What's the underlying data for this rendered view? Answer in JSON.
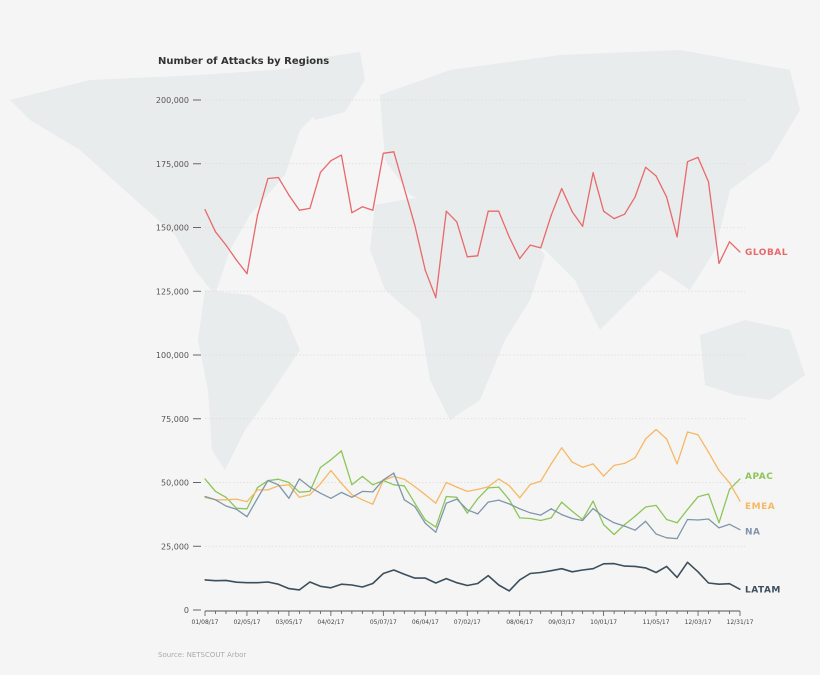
{
  "chart_data": {
    "type": "line",
    "title": "Number of Attacks by Regions",
    "source": "Source: NETSCOUT Arbor",
    "ylim": [
      0,
      200000
    ],
    "yticks": [
      "0",
      "25,000",
      "50,000",
      "75,000",
      "100,000",
      "125,000",
      "150,000",
      "175,000",
      "200,000"
    ],
    "ytick_values": [
      0,
      25000,
      50000,
      75000,
      100000,
      125000,
      150000,
      175000,
      200000
    ],
    "x_start": "01/08/17",
    "x_interval": "weekly",
    "x_count": 52,
    "xticks": [
      {
        "index": 0,
        "label": "01/08/17"
      },
      {
        "index": 4,
        "label": "02/05/17"
      },
      {
        "index": 8,
        "label": "03/05/17"
      },
      {
        "index": 12,
        "label": "04/02/17"
      },
      {
        "index": 17,
        "label": "05/07/17"
      },
      {
        "index": 21,
        "label": "06/04/17"
      },
      {
        "index": 25,
        "label": "07/02/17"
      },
      {
        "index": 30,
        "label": "08/06/17"
      },
      {
        "index": 34,
        "label": "09/03/17"
      },
      {
        "index": 38,
        "label": "10/01/17"
      },
      {
        "index": 43,
        "label": "11/05/17"
      },
      {
        "index": 47,
        "label": "12/03/17"
      },
      {
        "index": 51,
        "label": "12/31/17"
      }
    ],
    "grid": "horizontal dotted",
    "series": [
      {
        "name": "GLOBAL",
        "color": "#e8696b",
        "values": [
          157000,
          148300,
          143100,
          137200,
          131900,
          154800,
          169200,
          169600,
          162700,
          156800,
          157500,
          171600,
          176200,
          178400,
          155800,
          158100,
          156800,
          179100,
          179700,
          165300,
          150900,
          133200,
          122500,
          156400,
          152200,
          138500,
          138900,
          156400,
          156400,
          146300,
          137800,
          143100,
          142000,
          154800,
          165300,
          156200,
          150500,
          171500,
          156400,
          153500,
          155200,
          162000,
          173600,
          170200,
          162000,
          146300,
          175800,
          177500,
          167900,
          135900,
          144400,
          140400
        ]
      },
      {
        "name": "APAC",
        "color": "#8cc65a",
        "values": [
          51400,
          46500,
          44200,
          39900,
          39700,
          48000,
          50700,
          51300,
          50000,
          46200,
          46500,
          55900,
          58900,
          62400,
          49100,
          52400,
          49100,
          50800,
          49100,
          48700,
          41900,
          35300,
          32500,
          44500,
          44200,
          38000,
          43600,
          47900,
          48200,
          43300,
          36100,
          35900,
          35100,
          36100,
          42300,
          38700,
          35500,
          42700,
          33500,
          29600,
          33500,
          36800,
          40400,
          41000,
          35500,
          34200,
          39400,
          44400,
          45500,
          34200,
          47300,
          51400
        ]
      },
      {
        "name": "EMEA",
        "color": "#f7b866",
        "values": [
          44100,
          43200,
          43200,
          43500,
          42500,
          47100,
          47100,
          48700,
          49100,
          44200,
          45200,
          49500,
          54700,
          49700,
          45200,
          43200,
          41500,
          50800,
          52400,
          51300,
          48400,
          45200,
          41900,
          50000,
          48200,
          46500,
          47300,
          48300,
          51400,
          48800,
          44000,
          49200,
          50500,
          57300,
          63600,
          58000,
          56000,
          57300,
          52500,
          56700,
          57500,
          59700,
          67100,
          70800,
          67100,
          57300,
          69800,
          68700,
          61900,
          54700,
          49900,
          42700
        ]
      },
      {
        "name": "NA",
        "color": "#7f96aa",
        "values": [
          44500,
          43200,
          40800,
          39500,
          36600,
          43800,
          50800,
          49100,
          43800,
          51400,
          48200,
          45800,
          43800,
          46100,
          44200,
          46500,
          46300,
          51000,
          53700,
          43200,
          40600,
          34000,
          30500,
          41900,
          43500,
          39300,
          37700,
          42300,
          43100,
          41600,
          39700,
          38100,
          37200,
          39700,
          37400,
          35900,
          35100,
          39800,
          36500,
          34200,
          32900,
          31300,
          34800,
          29800,
          28300,
          28000,
          35500,
          35300,
          35700,
          32200,
          33600,
          31500
        ]
      },
      {
        "name": "LATAM",
        "color": "#3d4f5c",
        "values": [
          11800,
          11500,
          11600,
          10900,
          10700,
          10700,
          11000,
          10100,
          8400,
          7900,
          11000,
          9300,
          8700,
          10100,
          9800,
          9000,
          10400,
          14300,
          15700,
          14000,
          12500,
          12500,
          10600,
          12300,
          10700,
          9600,
          10400,
          13500,
          9800,
          7500,
          11800,
          14300,
          14700,
          15400,
          16200,
          15000,
          15700,
          16200,
          18100,
          18200,
          17200,
          17100,
          16500,
          14700,
          17100,
          12800,
          18700,
          15000,
          10600,
          10100,
          10300,
          8100
        ]
      }
    ]
  }
}
